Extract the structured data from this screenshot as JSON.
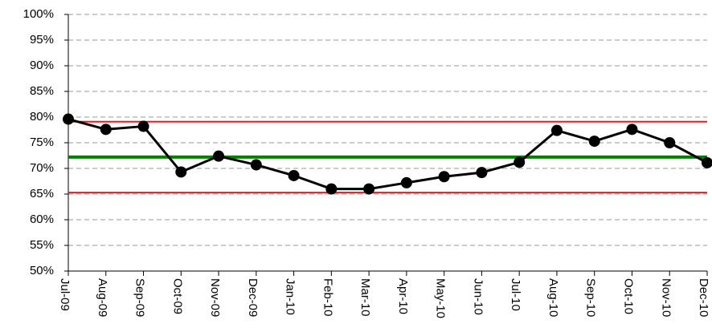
{
  "chart_data": {
    "type": "line",
    "categories": [
      "Jul-09",
      "Aug-09",
      "Sep-09",
      "Oct-09",
      "Nov-09",
      "Dec-09",
      "Jan-10",
      "Feb-10",
      "Mar-10",
      "Apr-10",
      "May-10",
      "Jun-10",
      "Jul-10",
      "Aug-10",
      "Sep-10",
      "Oct-10",
      "Nov-10",
      "Dec-10"
    ],
    "series": [
      {
        "color": "#000000",
        "values": [
          79.6,
          77.6,
          78.2,
          69.3,
          72.4,
          70.7,
          68.6,
          66,
          66,
          67.2,
          68.4,
          69.2,
          71.2,
          77.4,
          75.3,
          77.6,
          75,
          71.1
        ]
      }
    ],
    "reference_lines": [
      {
        "value": 79.1,
        "color": "#e02020"
      },
      {
        "value": 72.2,
        "color": "#008000"
      },
      {
        "value": 65.3,
        "color": "#e02020"
      }
    ],
    "ylim": [
      50,
      100
    ],
    "yticks": [
      {
        "value": 50,
        "label": "50%"
      },
      {
        "value": 55,
        "label": "55%"
      },
      {
        "value": 60,
        "label": "60%"
      },
      {
        "value": 65,
        "label": "65%"
      },
      {
        "value": 70,
        "label": "70%"
      },
      {
        "value": 75,
        "label": "75%"
      },
      {
        "value": 80,
        "label": "80%"
      },
      {
        "value": 85,
        "label": "85%"
      },
      {
        "value": 90,
        "label": "90%"
      },
      {
        "value": 95,
        "label": "95%"
      },
      {
        "value": 100,
        "label": "100%"
      }
    ],
    "grid": true
  }
}
